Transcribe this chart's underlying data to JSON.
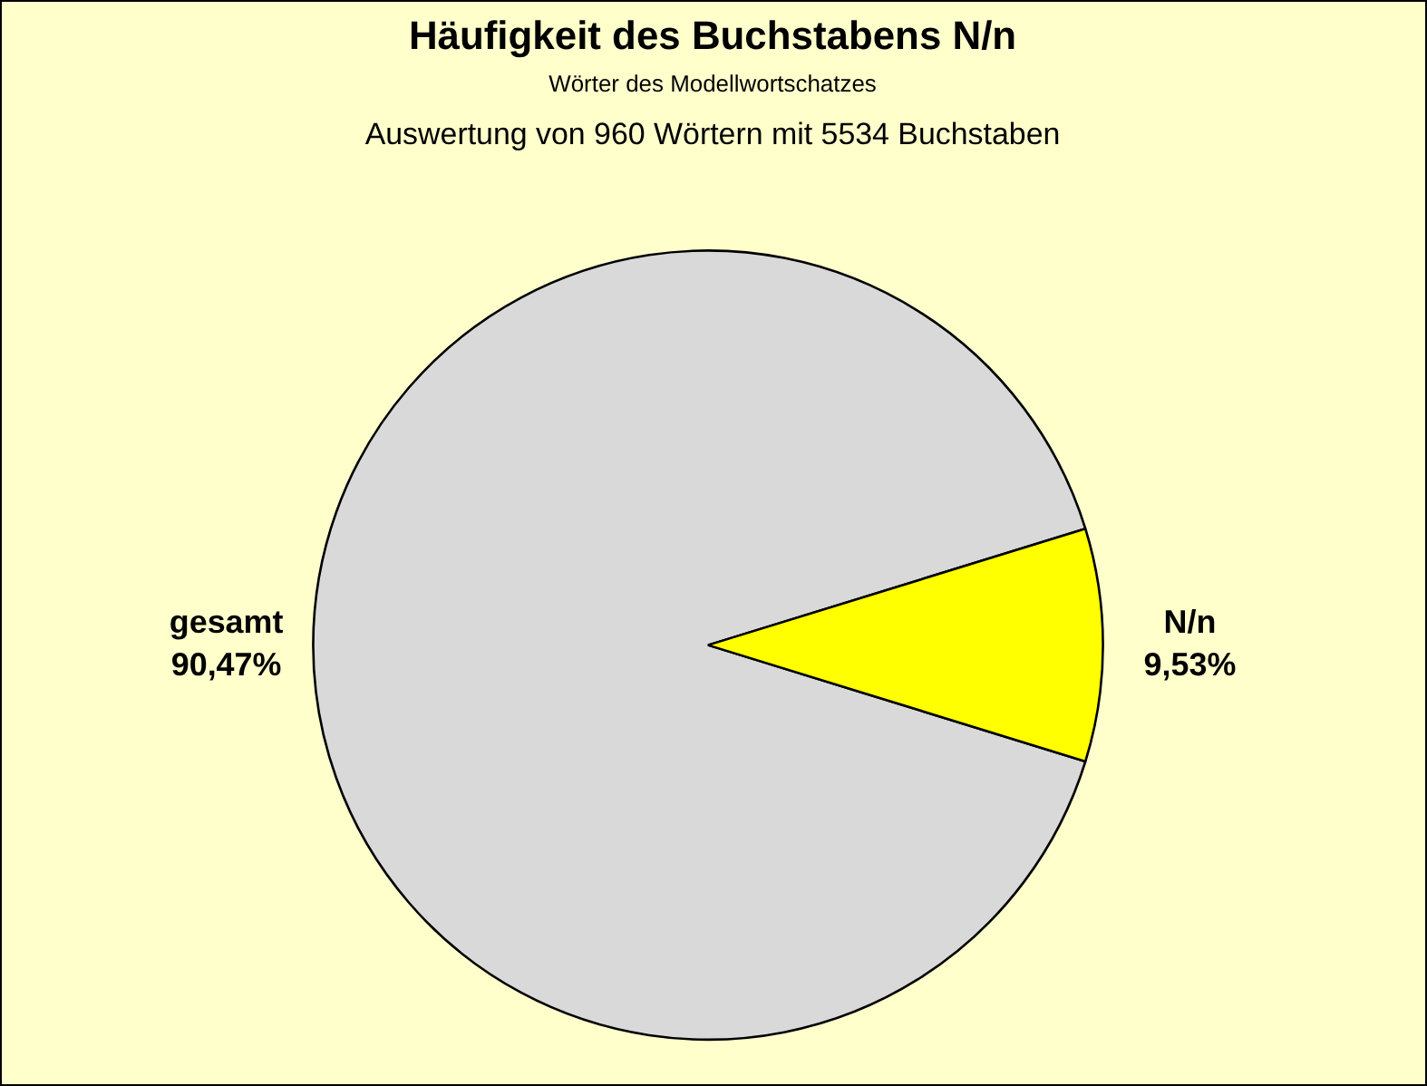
{
  "chart_data": {
    "type": "pie",
    "title": "Häufigkeit des Buchstabens N/n",
    "subtitle": "Wörter des Modellwortschatzes",
    "annotations": [
      "Auswertung von 960 Wörtern mit 5534 Buchstaben"
    ],
    "categories": [
      "gesamt",
      "N/n"
    ],
    "values": [
      90.47,
      9.53
    ],
    "value_labels": [
      "90,47%",
      "9,53%"
    ],
    "colors": [
      "#d9d9d9",
      "#ffff00"
    ],
    "legend": false
  }
}
